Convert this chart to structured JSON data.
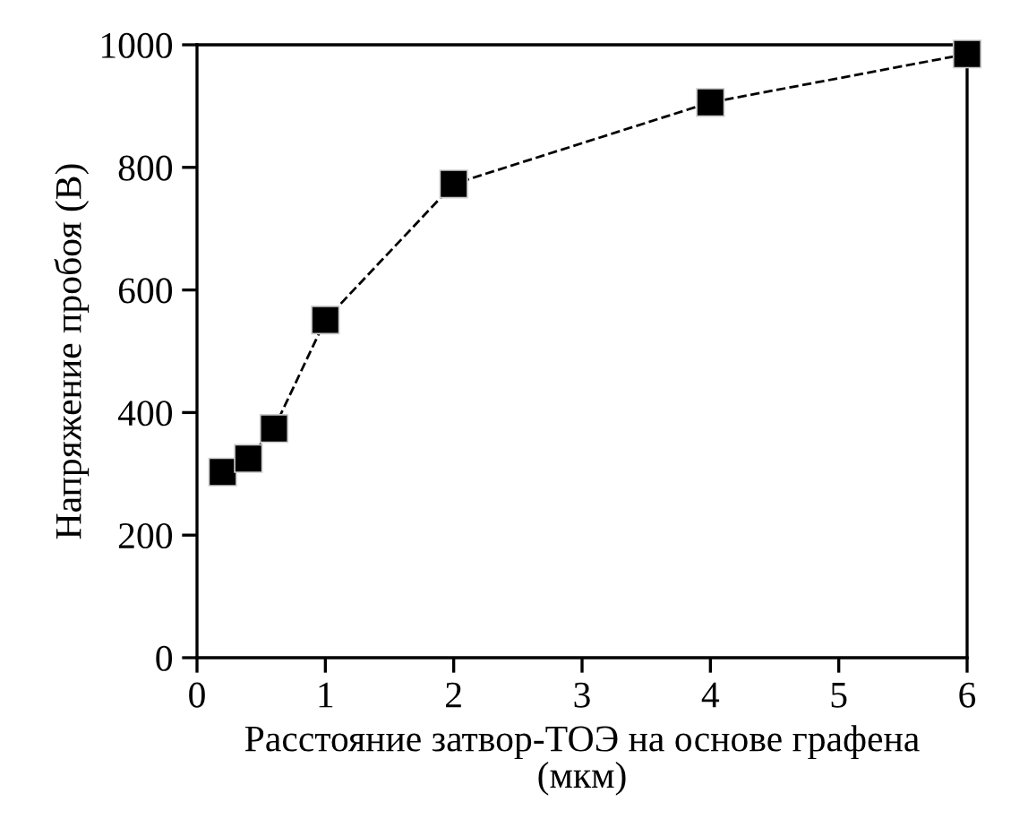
{
  "chart_data": {
    "type": "line",
    "xlabel": "Расстояние затвор-ТОЭ на основе графена\n(мкм)",
    "ylabel": "Напряжение пробоя (В)",
    "series": [
      {
        "color": "#000000",
        "x": [
          0.2,
          0.4,
          0.6,
          1,
          2,
          4,
          6
        ],
        "values": [
          303,
          325,
          374,
          551,
          773,
          906,
          985
        ]
      }
    ],
    "marker": "square",
    "line_style": "dashed",
    "xlim": [
      0,
      6
    ],
    "xticks": [
      0,
      1,
      2,
      3,
      4,
      5,
      6
    ],
    "ylim": [
      0,
      1000
    ],
    "yticks": [
      0,
      200,
      400,
      600,
      800,
      1000
    ],
    "grid": false,
    "legend": false
  }
}
